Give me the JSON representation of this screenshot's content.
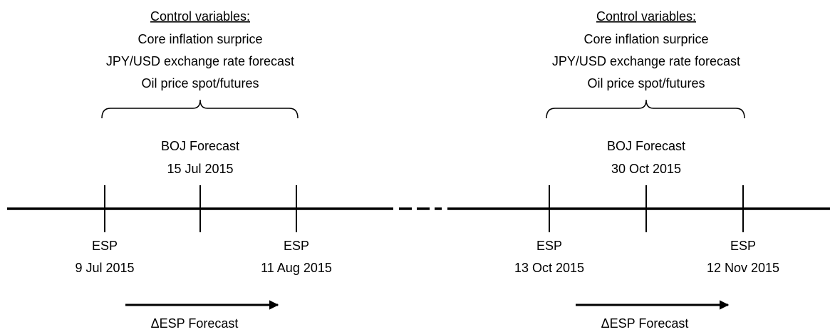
{
  "panels": [
    {
      "control_heading": "Control variables:",
      "controls": [
        "Core inflation surprice",
        "JPY/USD exchange rate forecast",
        "Oil price spot/futures"
      ],
      "forecast_label": "BOJ Forecast",
      "forecast_date": "15 Jul 2015",
      "start": {
        "label": "ESP",
        "date": "9 Jul 2015"
      },
      "end": {
        "label": "ESP",
        "date": "11 Aug 2015"
      },
      "arrow_label": "ΔESP Forecast",
      "color": "#4f81bd"
    },
    {
      "control_heading": "Control variables:",
      "controls": [
        "Core inflation surprice",
        "JPY/USD exchange rate forecast",
        "Oil price spot/futures"
      ],
      "forecast_label": "BOJ Forecast",
      "forecast_date": "30 Oct 2015",
      "start": {
        "label": "ESP",
        "date": "13 Oct 2015"
      },
      "end": {
        "label": "ESP",
        "date": "12 Nov 2015"
      },
      "arrow_label": "ΔESP Forecast",
      "color": "#ff0000"
    }
  ]
}
